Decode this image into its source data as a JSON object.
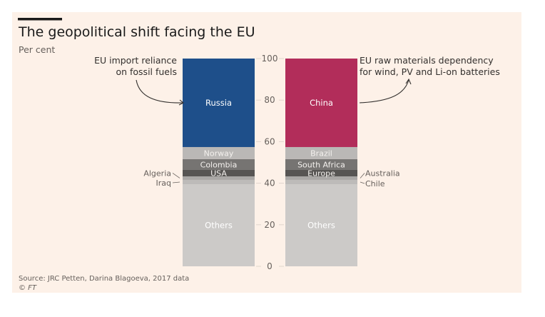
{
  "chart_data": {
    "type": "bar",
    "stacked": true,
    "title": "The geopolitical shift facing the EU",
    "subtitle": "Per cent",
    "ylabel": "Per cent",
    "ylim": [
      0,
      100
    ],
    "yticks": [
      0,
      20,
      40,
      60,
      80,
      100
    ],
    "grid": false,
    "categories": [
      "EU import reliance on fossil fuels",
      "EU raw materials dependency for wind, PV and Li-on batteries"
    ],
    "bars": [
      {
        "annotation": [
          "EU import reliance",
          "on fossil fuels"
        ],
        "annotation_side": "left",
        "segments": [
          {
            "name": "Others",
            "value": 39.5,
            "color": "#cccac8",
            "label_inside": true
          },
          {
            "name": "Iraq",
            "value": 2.1,
            "color": "#bdbbb9",
            "label_inside": false
          },
          {
            "name": "Algeria",
            "value": 1.7,
            "color": "#a9a7a5",
            "label_inside": false
          },
          {
            "name": "USA",
            "value": 3.1,
            "color": "#575553",
            "label_inside": true
          },
          {
            "name": "Colombia",
            "value": 5.2,
            "color": "#767472",
            "label_inside": true
          },
          {
            "name": "Norway",
            "value": 5.8,
            "color": "#bab8b6",
            "label_inside": true
          },
          {
            "name": "Russia",
            "value": 42.6,
            "color": "#1e4f8a",
            "label_inside": true
          }
        ]
      },
      {
        "annotation": [
          "EU raw materials dependency",
          "for wind, PV and Li-on batteries"
        ],
        "annotation_side": "right",
        "segments": [
          {
            "name": "Others",
            "value": 39.5,
            "color": "#cccac8",
            "label_inside": true
          },
          {
            "name": "Chile",
            "value": 2.1,
            "color": "#bdbbb9",
            "label_inside": false
          },
          {
            "name": "Australia",
            "value": 1.7,
            "color": "#a9a7a5",
            "label_inside": false
          },
          {
            "name": "Europe",
            "value": 3.1,
            "color": "#575553",
            "label_inside": true
          },
          {
            "name": "South Africa",
            "value": 5.2,
            "color": "#767472",
            "label_inside": true
          },
          {
            "name": "Brazil",
            "value": 5.8,
            "color": "#bab8b6",
            "label_inside": true
          },
          {
            "name": "China",
            "value": 42.6,
            "color": "#b22d5a",
            "label_inside": true
          }
        ]
      }
    ],
    "source": "Source: JRC Petten, Darina Blagoeva, 2017 data",
    "credit": "© FT"
  }
}
